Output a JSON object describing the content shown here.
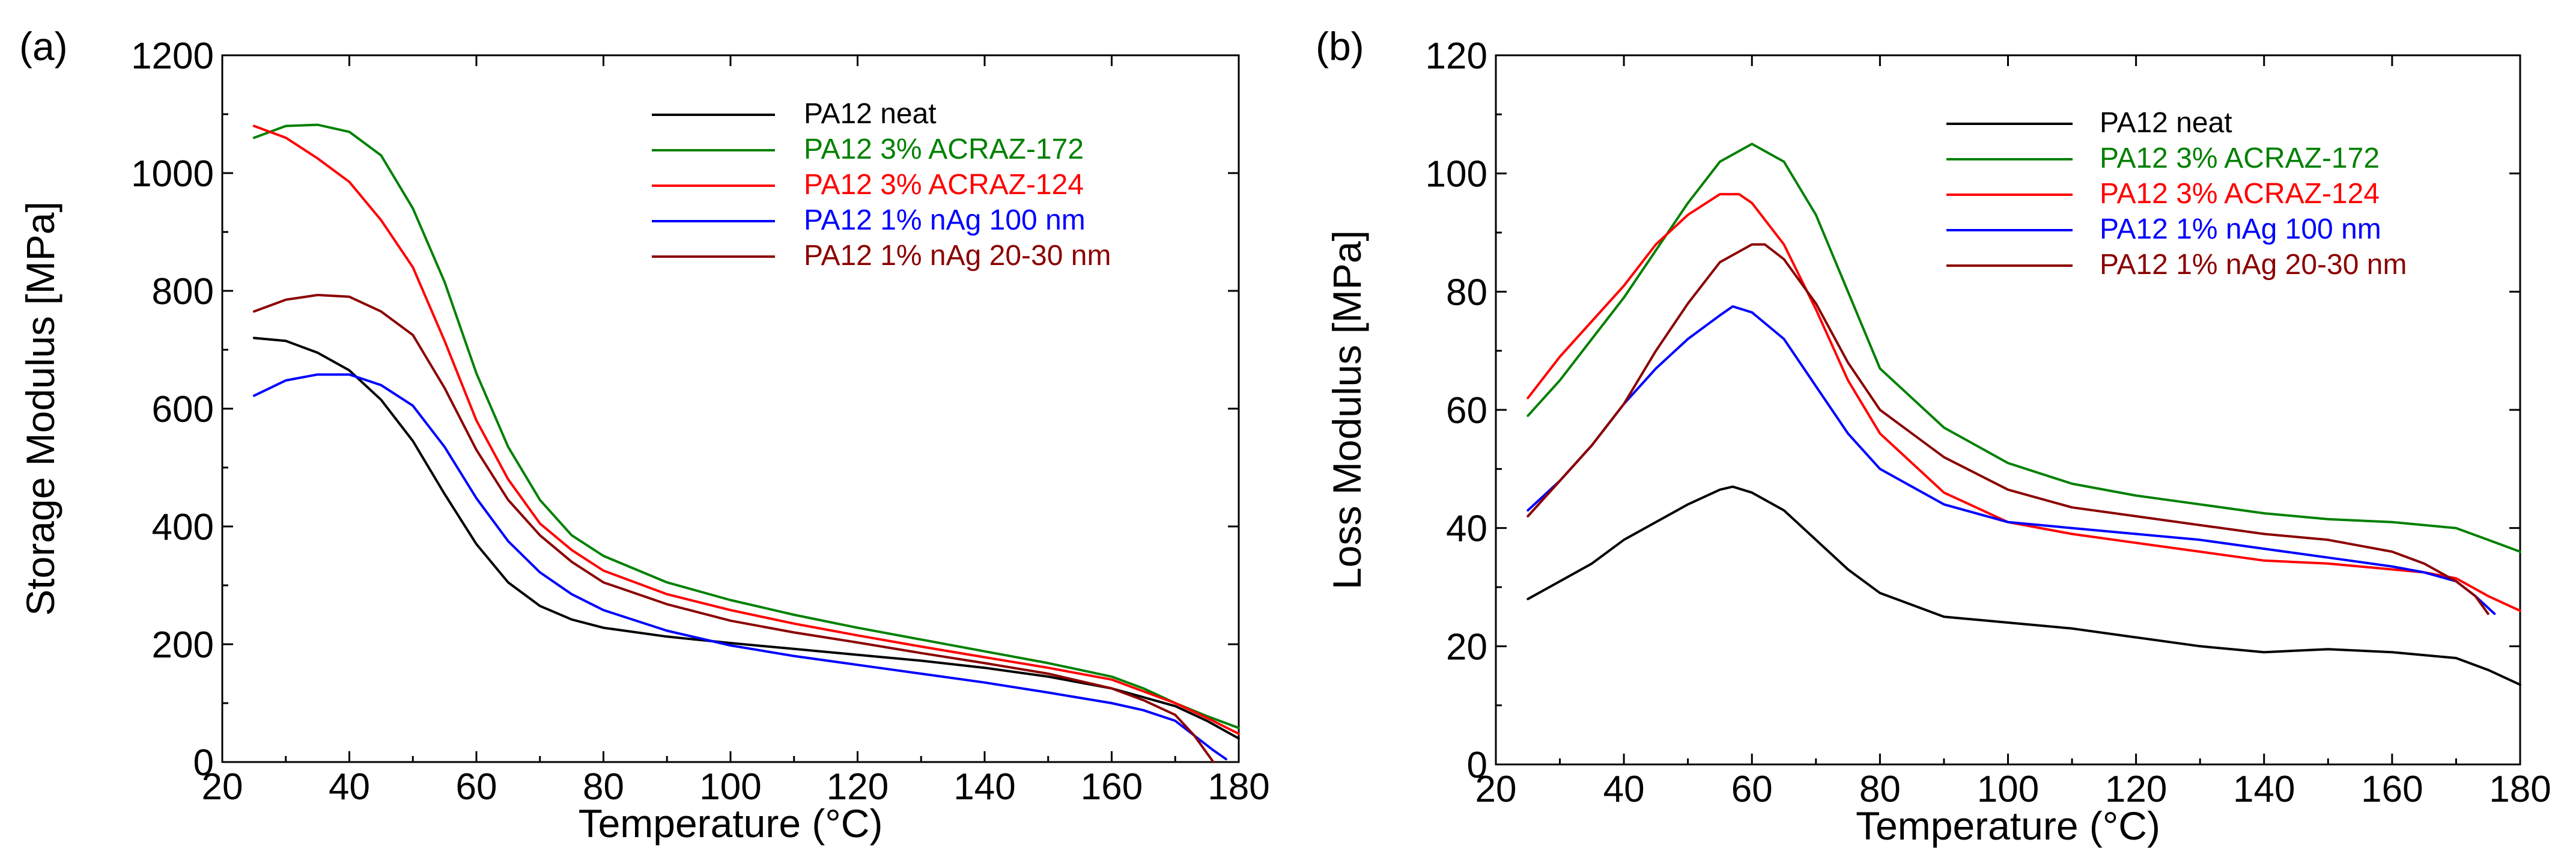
{
  "chart_data": [
    {
      "panel_label": "(a)",
      "type": "line",
      "xlabel": "Temperature (°C)",
      "ylabel": "Storage Modulus [MPa]",
      "xlim": [
        20,
        180
      ],
      "ylim": [
        0,
        1200
      ],
      "xticks": [
        20,
        40,
        60,
        80,
        100,
        120,
        140,
        160,
        180
      ],
      "yticks": [
        0,
        200,
        400,
        600,
        800,
        1000,
        1200
      ],
      "legend_position": "top-right",
      "series": [
        {
          "name": "PA12 neat",
          "color": "#000000",
          "x": [
            25,
            30,
            35,
            40,
            45,
            50,
            55,
            60,
            65,
            70,
            75,
            80,
            90,
            100,
            110,
            120,
            130,
            140,
            150,
            160,
            165,
            170,
            175,
            180
          ],
          "y": [
            720,
            715,
            695,
            665,
            615,
            545,
            455,
            370,
            305,
            265,
            242,
            228,
            213,
            202,
            192,
            182,
            172,
            160,
            145,
            125,
            110,
            95,
            70,
            40
          ]
        },
        {
          "name": "PA12 3% ACRAZ-172",
          "color": "#008000",
          "x": [
            25,
            30,
            35,
            40,
            45,
            50,
            55,
            60,
            65,
            70,
            75,
            80,
            90,
            100,
            110,
            120,
            130,
            140,
            150,
            160,
            165,
            170,
            175,
            180
          ],
          "y": [
            1060,
            1080,
            1082,
            1070,
            1030,
            940,
            815,
            660,
            535,
            445,
            385,
            350,
            305,
            275,
            250,
            228,
            208,
            188,
            168,
            145,
            125,
            100,
            78,
            58
          ]
        },
        {
          "name": "PA12 3% ACRAZ-124",
          "color": "#ff0000",
          "x": [
            25,
            30,
            35,
            40,
            45,
            50,
            55,
            60,
            65,
            70,
            75,
            80,
            90,
            100,
            110,
            120,
            130,
            140,
            150,
            160,
            165,
            170,
            175,
            180
          ],
          "y": [
            1080,
            1060,
            1025,
            985,
            920,
            840,
            715,
            580,
            480,
            405,
            360,
            325,
            285,
            258,
            235,
            215,
            196,
            178,
            160,
            140,
            120,
            100,
            75,
            48
          ]
        },
        {
          "name": "PA12 1% nAg 100 nm",
          "color": "#0000ff",
          "x": [
            25,
            30,
            35,
            40,
            45,
            50,
            55,
            60,
            65,
            70,
            75,
            80,
            90,
            100,
            110,
            120,
            130,
            140,
            150,
            160,
            165,
            170,
            173,
            176,
            178
          ],
          "y": [
            622,
            648,
            658,
            658,
            640,
            605,
            535,
            448,
            375,
            322,
            285,
            258,
            223,
            198,
            180,
            165,
            150,
            135,
            118,
            100,
            88,
            70,
            45,
            20,
            5
          ]
        },
        {
          "name": "PA12 1% nAg 20-30 nm",
          "color": "#8b0000",
          "x": [
            25,
            30,
            35,
            40,
            45,
            50,
            55,
            60,
            65,
            70,
            75,
            80,
            90,
            100,
            110,
            120,
            130,
            140,
            150,
            160,
            165,
            170,
            173,
            176
          ],
          "y": [
            765,
            785,
            793,
            790,
            765,
            725,
            635,
            530,
            445,
            385,
            340,
            305,
            268,
            240,
            220,
            203,
            185,
            168,
            150,
            125,
            105,
            80,
            45,
            0
          ]
        }
      ]
    },
    {
      "panel_label": "(b)",
      "type": "line",
      "xlabel": "Temperature (°C)",
      "ylabel": "Loss Modulus [MPa]",
      "xlim": [
        20,
        180
      ],
      "ylim": [
        0,
        120
      ],
      "xticks": [
        20,
        40,
        60,
        80,
        100,
        120,
        140,
        160,
        180
      ],
      "yticks": [
        0,
        20,
        40,
        60,
        80,
        100,
        120
      ],
      "legend_position": "top-right",
      "series": [
        {
          "name": "PA12 neat",
          "color": "#000000",
          "x": [
            25,
            30,
            35,
            40,
            45,
            50,
            55,
            57,
            60,
            65,
            70,
            75,
            80,
            90,
            100,
            110,
            120,
            130,
            140,
            150,
            160,
            165,
            170,
            175,
            180
          ],
          "y": [
            28,
            31,
            34,
            38,
            41,
            44,
            46.5,
            47,
            46,
            43,
            38,
            33,
            29,
            25,
            24,
            23,
            21.5,
            20,
            19,
            19.5,
            19,
            18.5,
            18,
            16,
            13.5
          ]
        },
        {
          "name": "PA12 3% ACRAZ-172",
          "color": "#008000",
          "x": [
            25,
            30,
            35,
            40,
            45,
            50,
            55,
            60,
            65,
            70,
            75,
            80,
            90,
            100,
            110,
            120,
            130,
            140,
            150,
            160,
            165,
            170,
            175,
            180
          ],
          "y": [
            59,
            65,
            72,
            79,
            87,
            95,
            102,
            105,
            102,
            93,
            80,
            67,
            57,
            51,
            47.5,
            45.5,
            44,
            42.5,
            41.5,
            41,
            40.5,
            40,
            38,
            36
          ]
        },
        {
          "name": "PA12 3% ACRAZ-124",
          "color": "#ff0000",
          "x": [
            25,
            30,
            35,
            40,
            45,
            50,
            55,
            58,
            60,
            65,
            70,
            75,
            80,
            90,
            100,
            110,
            120,
            130,
            140,
            150,
            160,
            165,
            170,
            175,
            180
          ],
          "y": [
            62,
            69,
            75,
            81,
            88,
            93,
            96.5,
            96.5,
            95,
            88,
            77,
            65,
            56,
            46,
            41,
            39,
            37.5,
            36,
            34.5,
            34,
            33,
            32.5,
            31.5,
            28.5,
            26
          ]
        },
        {
          "name": "PA12 1% nAg 100 nm",
          "color": "#0000ff",
          "x": [
            25,
            30,
            35,
            40,
            45,
            50,
            55,
            57,
            60,
            65,
            70,
            75,
            80,
            90,
            100,
            110,
            120,
            130,
            140,
            150,
            160,
            165,
            170,
            173,
            176
          ],
          "y": [
            43,
            48,
            54,
            61,
            67,
            72,
            76,
            77.5,
            76.5,
            72,
            64,
            56,
            50,
            44,
            41,
            40,
            39,
            38,
            36.5,
            35,
            33.5,
            32.5,
            31,
            28.5,
            25.5
          ]
        },
        {
          "name": "PA12 1% nAg 20-30 nm",
          "color": "#8b0000",
          "x": [
            25,
            30,
            35,
            40,
            45,
            50,
            55,
            60,
            62,
            65,
            70,
            75,
            80,
            90,
            100,
            110,
            120,
            130,
            140,
            150,
            160,
            165,
            170,
            173,
            175
          ],
          "y": [
            42,
            48,
            54,
            61,
            70,
            78,
            85,
            88,
            88,
            85.5,
            78,
            68,
            60,
            52,
            46.5,
            43.5,
            42,
            40.5,
            39,
            38,
            36,
            34,
            31,
            28.5,
            25.5
          ]
        }
      ]
    }
  ]
}
